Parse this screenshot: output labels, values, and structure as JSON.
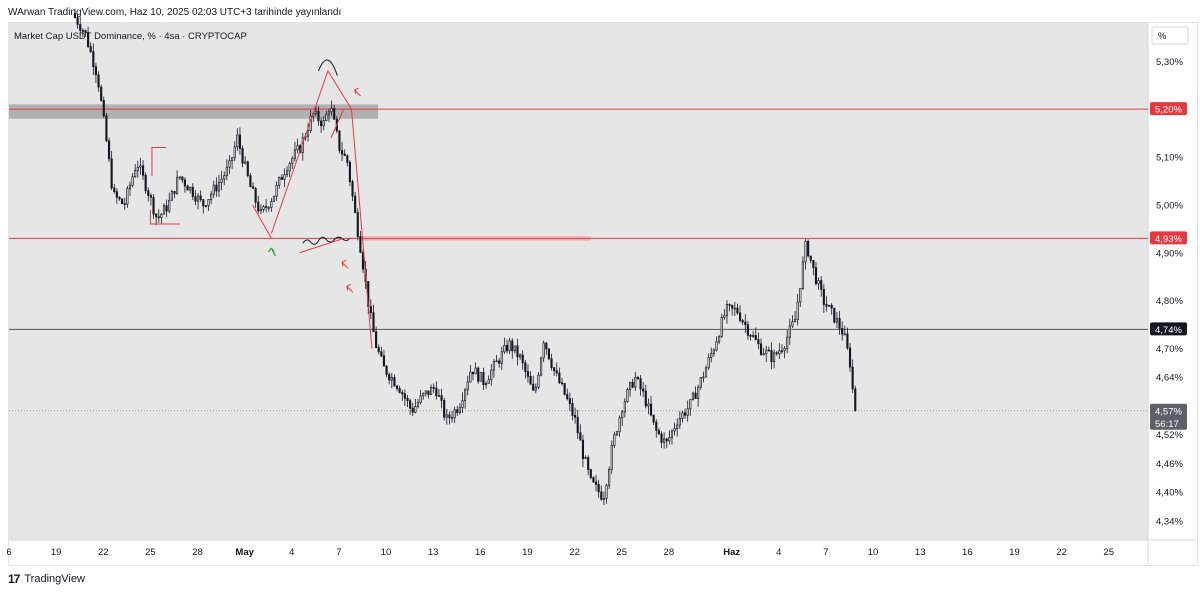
{
  "header": {
    "published": "WArwan TradingView.com, Haz 10, 2025 02:03 UTC+3 tarihinde yayınlandı"
  },
  "legend": {
    "symbol": "Market Cap USDT Dominance, % · 4sa · CRYPTOCAP"
  },
  "scale_mode": "%",
  "footer": {
    "logo": "17",
    "brand": "TradingView"
  },
  "colors": {
    "pane": "#e6e6e6",
    "candle": "#131722",
    "red_line": "#e5393f",
    "grey_zone": "#b0b0b0",
    "pink_zone": "#f5b5b8",
    "black_line": "#555555",
    "green_arrow": "#2ca02c"
  },
  "chart_data": {
    "type": "candlestick",
    "symbol": "Market Cap USDT Dominance",
    "y_unit": "%",
    "y_range": [
      4.3,
      5.38
    ],
    "y_ticks": [
      {
        "v": 5.3,
        "label": "5,30%"
      },
      {
        "v": 5.1,
        "label": "5,10%"
      },
      {
        "v": 5.0,
        "label": "5,00%"
      },
      {
        "v": 4.9,
        "label": "4,90%"
      },
      {
        "v": 4.8,
        "label": "4,80%"
      },
      {
        "v": 4.7,
        "label": "4,70%"
      },
      {
        "v": 4.64,
        "label": "4,64%"
      },
      {
        "v": 4.52,
        "label": "4,52%"
      },
      {
        "v": 4.46,
        "label": "4,46%"
      },
      {
        "v": 4.4,
        "label": "4,40%"
      },
      {
        "v": 4.34,
        "label": "4,34%"
      }
    ],
    "x_ticks": [
      {
        "d": 16,
        "label": "6"
      },
      {
        "d": 19,
        "label": "19"
      },
      {
        "d": 22,
        "label": "22"
      },
      {
        "d": 25,
        "label": "25"
      },
      {
        "d": 28,
        "label": "28"
      },
      {
        "d": 31,
        "label": "May"
      },
      {
        "d": 34,
        "label": "4"
      },
      {
        "d": 37,
        "label": "7"
      },
      {
        "d": 40,
        "label": "10"
      },
      {
        "d": 43,
        "label": "13"
      },
      {
        "d": 46,
        "label": "16"
      },
      {
        "d": 49,
        "label": "19"
      },
      {
        "d": 52,
        "label": "22"
      },
      {
        "d": 55,
        "label": "25"
      },
      {
        "d": 58,
        "label": "28"
      },
      {
        "d": 62,
        "label": "Haz"
      },
      {
        "d": 65,
        "label": "4"
      },
      {
        "d": 68,
        "label": "7"
      },
      {
        "d": 71,
        "label": "10"
      },
      {
        "d": 74,
        "label": "13"
      },
      {
        "d": 77,
        "label": "16"
      },
      {
        "d": 80,
        "label": "19"
      },
      {
        "d": 83,
        "label": "22"
      },
      {
        "d": 86,
        "label": "25"
      }
    ],
    "x_range_days": [
      16,
      88.5
    ],
    "candle_days": [
      20.2,
      70.0
    ],
    "path": [
      [
        20.2,
        5.4
      ],
      [
        21.0,
        5.36
      ],
      [
        21.8,
        5.27
      ],
      [
        22.3,
        5.15
      ],
      [
        22.8,
        5.02
      ],
      [
        23.5,
        5.0
      ],
      [
        24.3,
        5.09
      ],
      [
        25.0,
        5.03
      ],
      [
        25.6,
        4.97
      ],
      [
        26.3,
        5.0
      ],
      [
        27.0,
        5.06
      ],
      [
        27.8,
        5.03
      ],
      [
        28.5,
        5.0
      ],
      [
        29.4,
        5.04
      ],
      [
        30.2,
        5.08
      ],
      [
        30.7,
        5.14
      ],
      [
        31.5,
        5.04
      ],
      [
        32.2,
        4.98
      ],
      [
        33.0,
        5.02
      ],
      [
        33.8,
        5.08
      ],
      [
        34.7,
        5.12
      ],
      [
        35.5,
        5.19
      ],
      [
        36.2,
        5.17
      ],
      [
        36.6,
        5.21
      ],
      [
        37.2,
        5.12
      ],
      [
        37.7,
        5.09
      ],
      [
        38.2,
        4.98
      ],
      [
        38.6,
        4.9
      ],
      [
        39.1,
        4.78
      ],
      [
        39.5,
        4.71
      ],
      [
        40.0,
        4.66
      ],
      [
        41.0,
        4.62
      ],
      [
        41.8,
        4.57
      ],
      [
        42.5,
        4.6
      ],
      [
        43.3,
        4.62
      ],
      [
        44.0,
        4.55
      ],
      [
        44.8,
        4.58
      ],
      [
        45.6,
        4.66
      ],
      [
        46.4,
        4.63
      ],
      [
        47.2,
        4.67
      ],
      [
        48.0,
        4.71
      ],
      [
        48.7,
        4.68
      ],
      [
        49.6,
        4.6
      ],
      [
        50.2,
        4.72
      ],
      [
        50.9,
        4.65
      ],
      [
        51.6,
        4.6
      ],
      [
        52.2,
        4.55
      ],
      [
        52.7,
        4.48
      ],
      [
        53.2,
        4.42
      ],
      [
        54.0,
        4.39
      ],
      [
        54.6,
        4.5
      ],
      [
        55.2,
        4.58
      ],
      [
        56.0,
        4.64
      ],
      [
        56.6,
        4.6
      ],
      [
        57.3,
        4.53
      ],
      [
        58.0,
        4.5
      ],
      [
        58.7,
        4.55
      ],
      [
        59.5,
        4.58
      ],
      [
        60.3,
        4.64
      ],
      [
        61.0,
        4.7
      ],
      [
        61.8,
        4.78
      ],
      [
        62.5,
        4.78
      ],
      [
        63.2,
        4.74
      ],
      [
        64.0,
        4.7
      ],
      [
        64.8,
        4.68
      ],
      [
        65.5,
        4.71
      ],
      [
        66.2,
        4.76
      ],
      [
        66.9,
        4.92
      ],
      [
        67.4,
        4.86
      ],
      [
        68.0,
        4.8
      ],
      [
        68.8,
        4.76
      ],
      [
        69.3,
        4.73
      ],
      [
        69.7,
        4.67
      ],
      [
        70.0,
        4.57
      ]
    ],
    "current_price": 4.57,
    "price_labels": [
      {
        "v": 5.2,
        "label": "5,20%",
        "color": "#e5393f"
      },
      {
        "v": 4.93,
        "label": "4,93%",
        "color": "#e5393f"
      },
      {
        "v": 4.74,
        "label": "4,74%",
        "color": "#131722"
      },
      {
        "v": 4.57,
        "label": "4,57%",
        "color": "#5d606b",
        "countdown": "56:17"
      }
    ],
    "horizontal_lines": [
      {
        "v": 5.2,
        "color": "#e5393f"
      },
      {
        "v": 4.93,
        "color": "#e5393f"
      },
      {
        "v": 4.74,
        "color": "#555555"
      },
      {
        "v": 4.57,
        "color": "#9598a1",
        "dashed": true
      }
    ],
    "zones": [
      {
        "d0": 16,
        "d1": 39.5,
        "v0": 5.21,
        "v1": 5.18,
        "color": "#b0b0b0"
      },
      {
        "d0": 38.3,
        "d1": 53.0,
        "v0": 4.935,
        "v1": 4.925,
        "color": "#f5b5b8"
      }
    ]
  }
}
